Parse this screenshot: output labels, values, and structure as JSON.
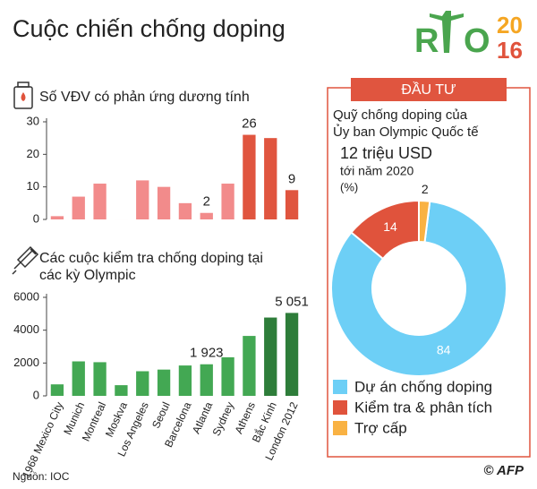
{
  "title": "Cuộc chiến chống doping",
  "logo": {
    "left": "R",
    "right": "O",
    "year_top": "20",
    "year_bottom": "16"
  },
  "source": "Nguồn: IOC",
  "credit": "© AFP",
  "chart_data": [
    {
      "type": "bar",
      "title": "Số VĐV có phản ứng dương tính",
      "categories": [
        null,
        null,
        null,
        null,
        null,
        null,
        null,
        null,
        null,
        null,
        null,
        null
      ],
      "values": [
        1,
        7,
        11,
        0,
        12,
        10,
        5,
        2,
        11,
        26,
        25,
        9
      ],
      "value_labels": [
        null,
        null,
        null,
        null,
        null,
        null,
        null,
        "2",
        null,
        "26",
        null,
        "9"
      ],
      "colors": [
        "#f28b8b",
        "#f28b8b",
        "#f28b8b",
        "#f28b8b",
        "#f28b8b",
        "#f28b8b",
        "#f28b8b",
        "#f28b8b",
        "#f28b8b",
        "#e0553f",
        "#e0553f",
        "#e0553f"
      ],
      "ylim": [
        0,
        30
      ],
      "yticks": [
        0,
        10,
        20,
        30
      ]
    },
    {
      "type": "bar",
      "title": "Các cuộc kiểm tra chống doping tại các kỳ Olympic",
      "categories": [
        "1968 Mexico City",
        "Munich",
        "Montreal",
        "Moskva",
        "Los Angeles",
        "Seoul",
        "Barcelona",
        "Atlanta",
        "Sydney",
        "Athens",
        "Bắc Kinh",
        "London 2012"
      ],
      "values": [
        700,
        2100,
        2050,
        650,
        1500,
        1600,
        1850,
        1923,
        2350,
        3650,
        4770,
        5051
      ],
      "value_labels": [
        null,
        null,
        null,
        null,
        null,
        null,
        null,
        "1 923",
        null,
        null,
        null,
        "5 051"
      ],
      "colors": [
        "#43a853",
        "#43a853",
        "#43a853",
        "#43a853",
        "#43a853",
        "#43a853",
        "#43a853",
        "#43a853",
        "#43a853",
        "#43a853",
        "#2e7d3a",
        "#2e7d3a"
      ],
      "ylim": [
        0,
        6000
      ],
      "yticks": [
        0,
        2000,
        4000,
        6000
      ]
    },
    {
      "type": "pie",
      "header": "ĐẦU TƯ",
      "subtitle": [
        "Quỹ chống doping của",
        "Ủy ban Olympic Quốc tế"
      ],
      "amount": "12 triệu USD",
      "period": "tới năm 2020",
      "unit": "(%)",
      "categories": [
        "Dự án chống doping",
        "Kiểm tra & phân tích",
        "Trợ cấp"
      ],
      "values": [
        84,
        14,
        2
      ],
      "colors": [
        "#6dcff6",
        "#e0533c",
        "#f9b243"
      ]
    }
  ]
}
